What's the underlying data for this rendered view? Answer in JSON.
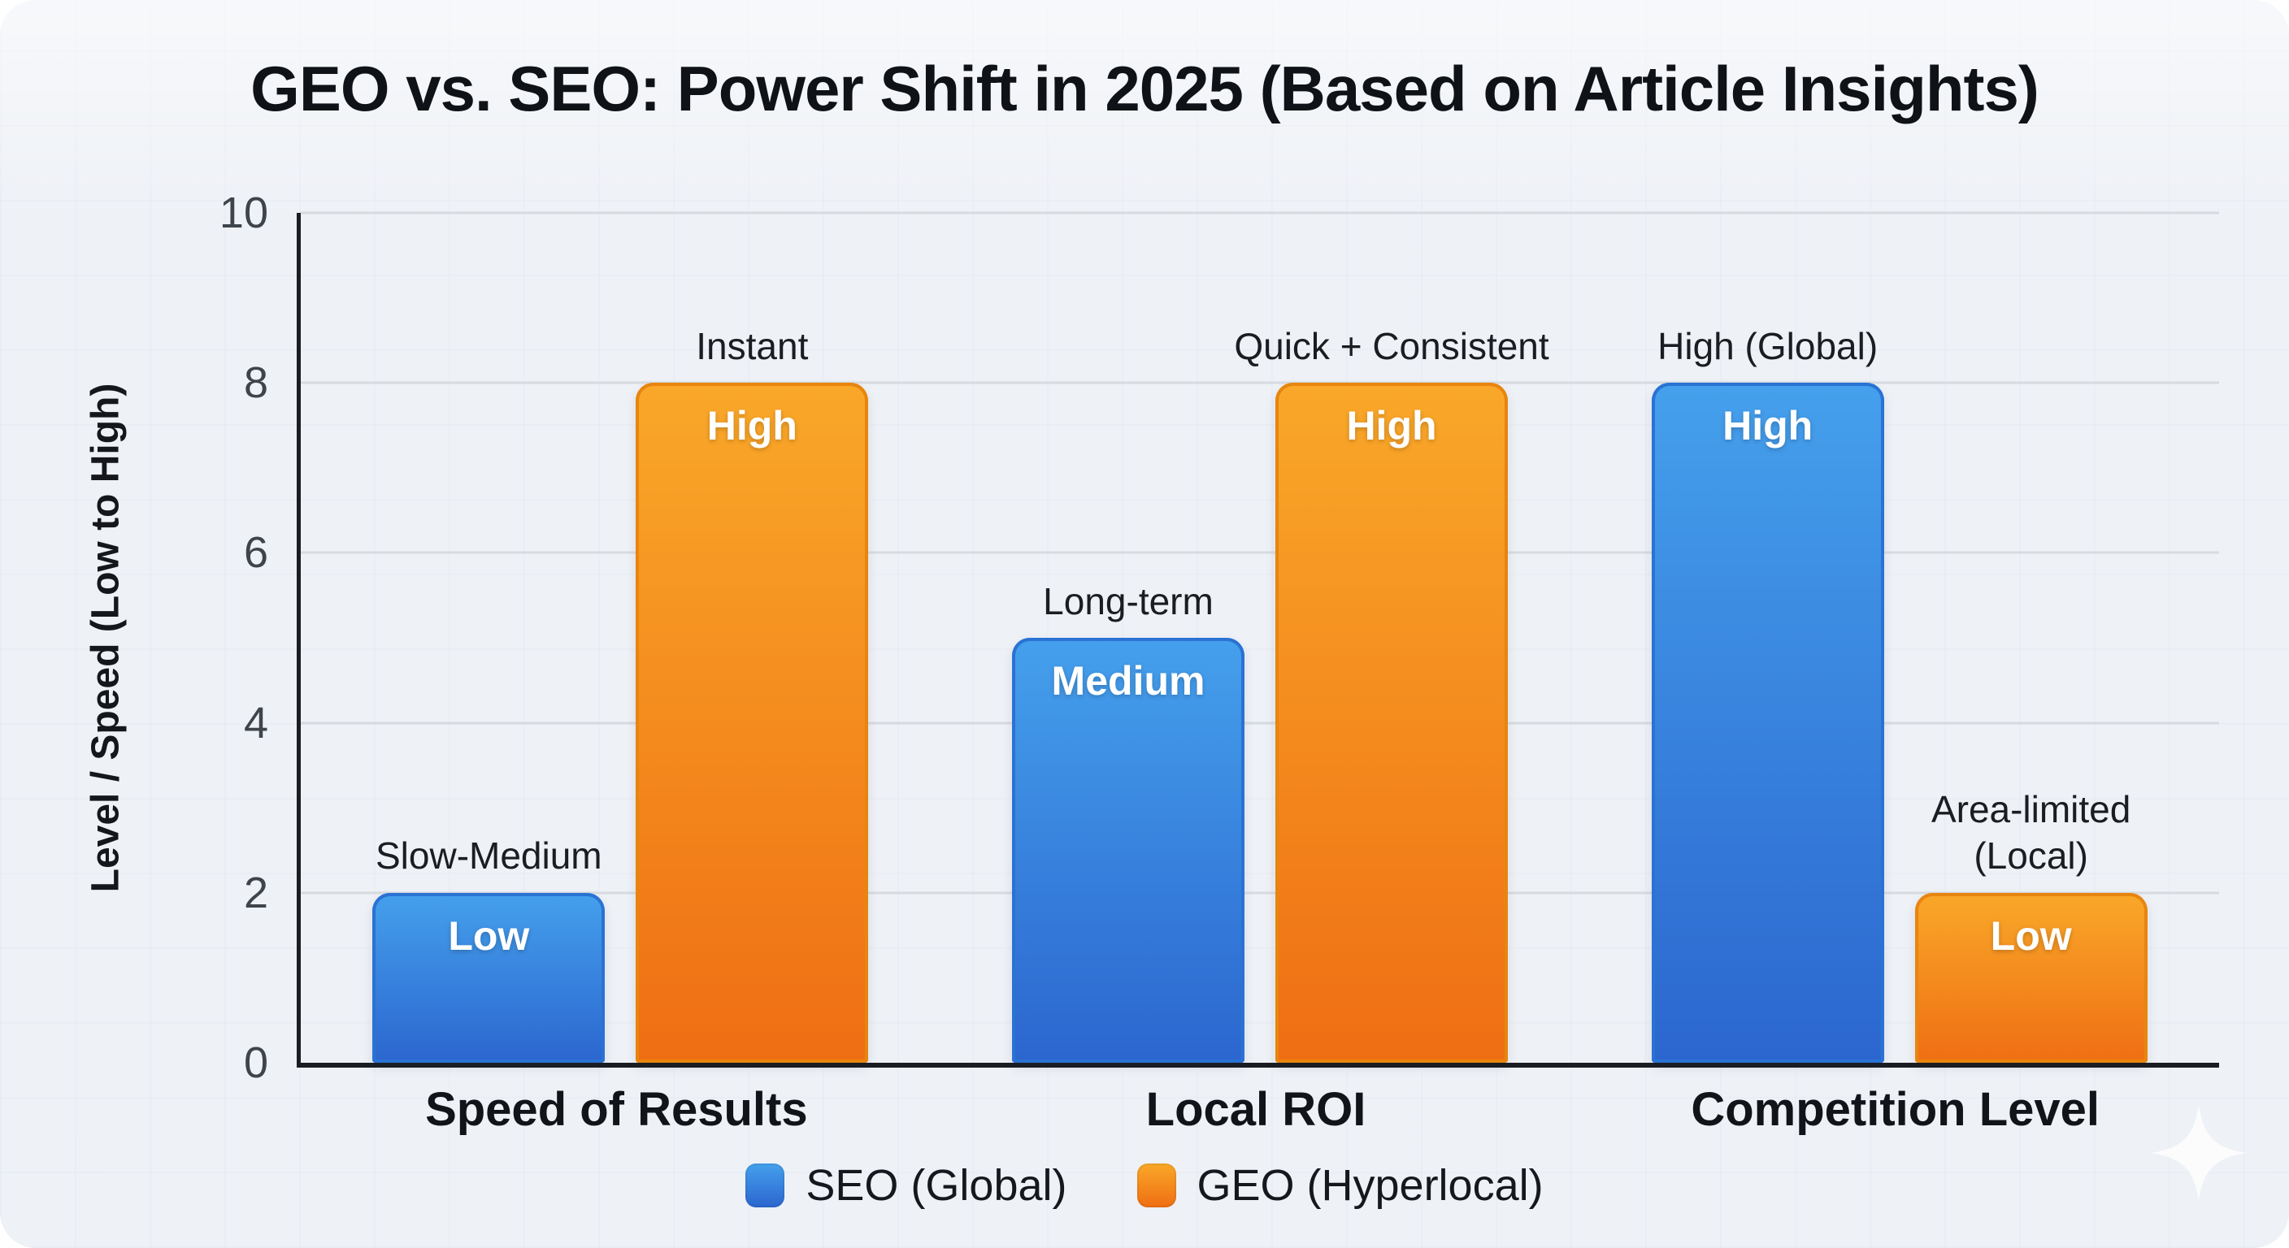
{
  "page": {
    "background": "#ffffff",
    "canvas_background": "#eef1f6"
  },
  "chart_data": {
    "type": "bar",
    "title": "GEO vs. SEO: Power Shift in 2025 (Based on Article Insights)",
    "xlabel": "",
    "ylabel": "Level / Speed (Low to High)",
    "ylim": [
      0,
      10
    ],
    "yticks": [
      0,
      2,
      4,
      6,
      8,
      10
    ],
    "grid": "horizontal",
    "legend_position": "bottom",
    "categories": [
      "Speed of Results",
      "Local ROI",
      "Competition Level"
    ],
    "series": [
      {
        "name": "SEO (Global)",
        "values": [
          2,
          5,
          8
        ],
        "bar_labels": [
          "Low",
          "Medium",
          "High"
        ],
        "annotations": [
          "Slow-Medium",
          "Long-term",
          "High (Global)"
        ],
        "color_top": "#45A0EC",
        "color_bottom": "#2B66CF",
        "color_border": "#2A72D4"
      },
      {
        "name": "GEO (Hyperlocal)",
        "values": [
          8,
          8,
          2
        ],
        "bar_labels": [
          "High",
          "High",
          "Low"
        ],
        "annotations": [
          "Instant",
          "Quick + Consistent",
          "Area-limited\n(Local)"
        ],
        "color_top": "#F9A829",
        "color_bottom": "#EF6E13",
        "color_border": "#E8850E"
      }
    ],
    "axis_color": "#1b1d20",
    "grid_color": "#d7dbe0",
    "tick_text_color": "#3f444b"
  },
  "decorations": {
    "sparkle_icon": "four-point-star",
    "sparkle_color": "#ffffff"
  }
}
